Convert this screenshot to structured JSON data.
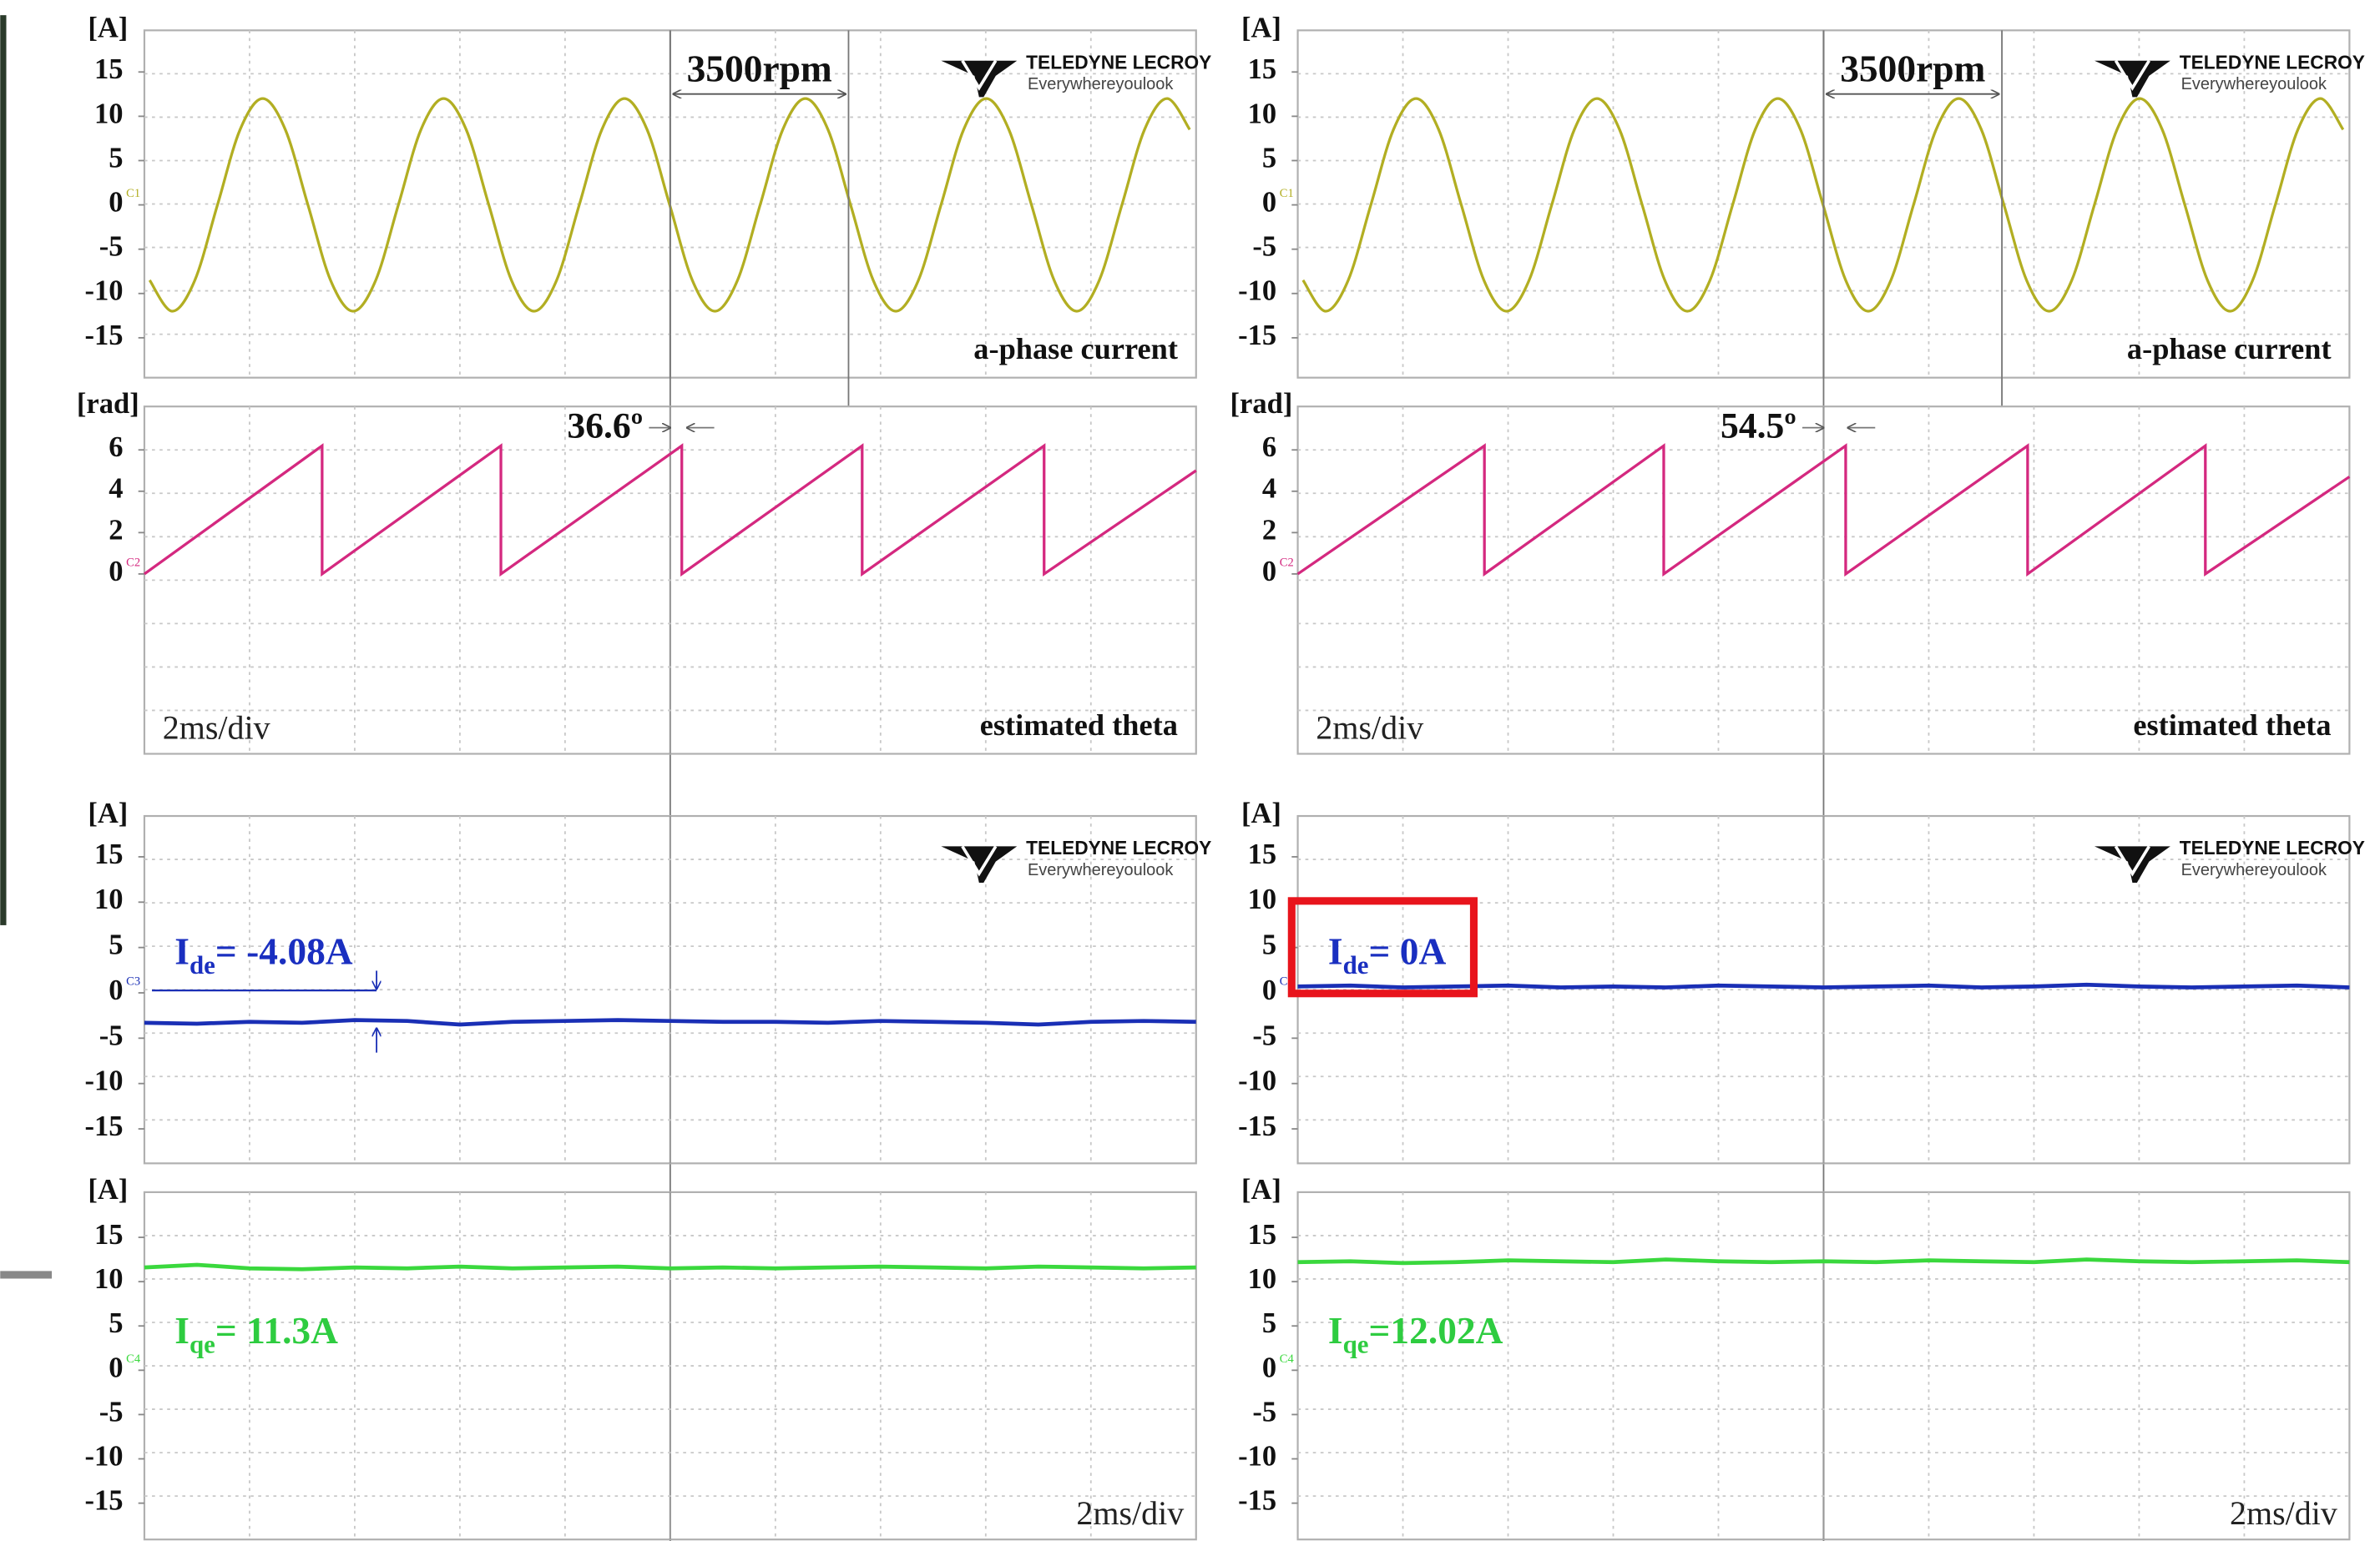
{
  "logo": {
    "brand": "TELEDYNE LECROY",
    "tagline": "Everywhereyoulook"
  },
  "chart_data": [
    {
      "type": "line",
      "ylabel": "[A]",
      "channel": "C1",
      "label": "a-phase current",
      "cursor_text": "3500rpm",
      "xlim": [
        0,
        20
      ],
      "ylim": [
        -19.5,
        19.7
      ],
      "yticks": [
        15,
        10,
        5,
        0,
        -5,
        -10,
        -15
      ],
      "grid": true,
      "x": [
        0.1,
        0.53,
        0.96,
        1.39,
        1.82,
        2.25,
        2.68,
        3.11,
        3.54,
        3.97,
        4.4,
        4.83,
        5.26,
        5.69,
        6.12,
        6.55,
        6.98,
        7.41,
        7.84,
        8.27,
        8.7,
        9.13,
        9.56,
        9.99,
        10.42,
        10.85,
        11.28,
        11.71,
        12.14,
        12.57,
        13.0,
        13.43,
        13.86,
        14.29,
        14.72,
        15.15,
        15.58,
        16.01,
        16.44,
        16.87,
        17.3,
        17.73,
        18.16,
        18.59,
        19.02,
        19.45,
        19.88
      ],
      "series": [
        {
          "color": "#b2ae22",
          "values": [
            -8.5,
            -12,
            -8.5,
            0,
            8.5,
            12,
            8.5,
            0,
            -8.5,
            -12,
            -8.5,
            0,
            8.5,
            12,
            8.5,
            0,
            -8.5,
            -12,
            -8.5,
            0,
            8.5,
            12,
            8.5,
            0,
            -8.5,
            -12,
            -8.5,
            0,
            8.5,
            12,
            8.5,
            0,
            -8.5,
            -12,
            -8.5,
            0,
            8.5,
            12,
            8.5,
            0,
            -8.5,
            -12,
            -8.5,
            0,
            8.5,
            12,
            8.5
          ]
        }
      ]
    },
    {
      "type": "line",
      "ylabel": "[rad]",
      "channel": "C2",
      "label": "estimated theta",
      "div": "2ms/div",
      "phase_text": "36.6º",
      "xlim": [
        0,
        20
      ],
      "ylim": [
        -8.7,
        8.1
      ],
      "yticks": [
        6,
        4,
        2,
        0
      ],
      "grid": true,
      "x": [
        0,
        3.38,
        3.38,
        6.78,
        6.78,
        10.22,
        10.22,
        13.65,
        13.65,
        17.11,
        17.11,
        20
      ],
      "series": [
        {
          "color": "#d4287f",
          "values": [
            0,
            6.2,
            0,
            6.2,
            0,
            6.2,
            0,
            6.2,
            0,
            6.2,
            0,
            5.0
          ]
        }
      ]
    },
    {
      "type": "line",
      "ylabel": "[A]",
      "channel": "C3",
      "annotation": {
        "text": "I",
        "subscript": "de",
        "suffix": "= -4.08A"
      },
      "xlim": [
        0,
        20
      ],
      "ylim": [
        -18.8,
        19.5
      ],
      "yticks": [
        15,
        10,
        5,
        0,
        -5,
        -10,
        -15
      ],
      "grid": true,
      "x": [
        0,
        1,
        2,
        3,
        4,
        5,
        6,
        7,
        8,
        9,
        10,
        11,
        12,
        13,
        14,
        15,
        16,
        17,
        18,
        19,
        20
      ],
      "series": [
        {
          "color": "#1a2fb5",
          "values": [
            -3.3,
            -3.4,
            -3.2,
            -3.3,
            -3.0,
            -3.1,
            -3.5,
            -3.2,
            -3.1,
            -3.0,
            -3.1,
            -3.2,
            -3.2,
            -3.3,
            -3.1,
            -3.2,
            -3.3,
            -3.5,
            -3.2,
            -3.1,
            -3.2
          ]
        }
      ]
    },
    {
      "type": "line",
      "ylabel": "[A]",
      "channel": "C4",
      "div": "2ms/div",
      "annotation": {
        "text": "I",
        "subscript": "qe",
        "suffix": "= 11.3A"
      },
      "xlim": [
        0,
        20
      ],
      "ylim": [
        -19.1,
        20.1
      ],
      "yticks": [
        15,
        10,
        5,
        0,
        -5,
        -10,
        -15
      ],
      "grid": true,
      "x": [
        0,
        1,
        2,
        3,
        4,
        5,
        6,
        7,
        8,
        9,
        10,
        11,
        12,
        13,
        14,
        15,
        16,
        17,
        18,
        19,
        20
      ],
      "series": [
        {
          "color": "#3ad83d",
          "values": [
            11.6,
            11.9,
            11.5,
            11.4,
            11.6,
            11.5,
            11.7,
            11.5,
            11.6,
            11.7,
            11.5,
            11.6,
            11.5,
            11.6,
            11.7,
            11.6,
            11.5,
            11.7,
            11.6,
            11.5,
            11.6
          ]
        }
      ]
    },
    {
      "type": "line",
      "ylabel": "[A]",
      "channel": "C1",
      "label": "a-phase current",
      "cursor_text": "3500rpm",
      "xlim": [
        0,
        20
      ],
      "ylim": [
        -19.5,
        19.7
      ],
      "yticks": [
        15,
        10,
        5,
        0,
        -5,
        -10,
        -15
      ],
      "grid": true,
      "x": [
        0.1,
        0.53,
        0.96,
        1.39,
        1.82,
        2.25,
        2.68,
        3.11,
        3.54,
        3.97,
        4.4,
        4.83,
        5.26,
        5.69,
        6.12,
        6.55,
        6.98,
        7.41,
        7.84,
        8.27,
        8.7,
        9.13,
        9.56,
        9.99,
        10.42,
        10.85,
        11.28,
        11.71,
        12.14,
        12.57,
        13.0,
        13.43,
        13.86,
        14.29,
        14.72,
        15.15,
        15.58,
        16.01,
        16.44,
        16.87,
        17.3,
        17.73,
        18.16,
        18.59,
        19.02,
        19.45,
        19.88
      ],
      "series": [
        {
          "color": "#b2ae22",
          "values": [
            -8.5,
            -12,
            -8.5,
            0,
            8.5,
            12,
            8.5,
            0,
            -8.5,
            -12,
            -8.5,
            0,
            8.5,
            12,
            8.5,
            0,
            -8.5,
            -12,
            -8.5,
            0,
            8.5,
            12,
            8.5,
            0,
            -8.5,
            -12,
            -8.5,
            0,
            8.5,
            12,
            8.5,
            0,
            -8.5,
            -12,
            -8.5,
            0,
            8.5,
            12,
            8.5,
            0,
            -8.5,
            -12,
            -8.5,
            0,
            8.5,
            12,
            8.5
          ]
        }
      ]
    },
    {
      "type": "line",
      "ylabel": "[rad]",
      "channel": "C2",
      "label": "estimated theta",
      "div": "2ms/div",
      "phase_text": "54.5º",
      "xlim": [
        0,
        20
      ],
      "ylim": [
        -8.7,
        8.1
      ],
      "yticks": [
        6,
        4,
        2,
        0
      ],
      "grid": true,
      "x": [
        0,
        3.55,
        3.55,
        6.96,
        6.96,
        10.42,
        10.42,
        13.88,
        13.88,
        17.26,
        17.26,
        20
      ],
      "series": [
        {
          "color": "#d4287f",
          "values": [
            0,
            6.2,
            0,
            6.2,
            0,
            6.2,
            0,
            6.2,
            0,
            6.2,
            0,
            4.7
          ]
        }
      ]
    },
    {
      "type": "line",
      "ylabel": "[A]",
      "channel": "C3",
      "annotation": {
        "text": "I",
        "subscript": "de",
        "suffix": "= 0A"
      },
      "xlim": [
        0,
        20
      ],
      "ylim": [
        -18.8,
        19.5
      ],
      "yticks": [
        15,
        10,
        5,
        0,
        -5,
        -10,
        -15
      ],
      "grid": true,
      "x": [
        0,
        1,
        2,
        3,
        4,
        5,
        6,
        7,
        8,
        9,
        10,
        11,
        12,
        13,
        14,
        15,
        16,
        17,
        18,
        19,
        20
      ],
      "series": [
        {
          "color": "#1a2fb5",
          "values": [
            0.7,
            0.8,
            0.6,
            0.7,
            0.8,
            0.6,
            0.7,
            0.6,
            0.8,
            0.7,
            0.6,
            0.7,
            0.8,
            0.6,
            0.7,
            0.9,
            0.7,
            0.6,
            0.7,
            0.8,
            0.6
          ]
        }
      ]
    },
    {
      "type": "line",
      "ylabel": "[A]",
      "channel": "C4",
      "div": "2ms/div",
      "annotation": {
        "text": "I",
        "subscript": "qe",
        "suffix": "=12.02A"
      },
      "xlim": [
        0,
        20
      ],
      "ylim": [
        -19.1,
        20.1
      ],
      "yticks": [
        15,
        10,
        5,
        0,
        -5,
        -10,
        -15
      ],
      "grid": true,
      "x": [
        0,
        1,
        2,
        3,
        4,
        5,
        6,
        7,
        8,
        9,
        10,
        11,
        12,
        13,
        14,
        15,
        16,
        17,
        18,
        19,
        20
      ],
      "series": [
        {
          "color": "#3ad83d",
          "values": [
            12.2,
            12.3,
            12.1,
            12.2,
            12.4,
            12.3,
            12.2,
            12.5,
            12.3,
            12.2,
            12.3,
            12.2,
            12.4,
            12.3,
            12.2,
            12.5,
            12.3,
            12.2,
            12.3,
            12.4,
            12.2
          ]
        }
      ]
    }
  ]
}
